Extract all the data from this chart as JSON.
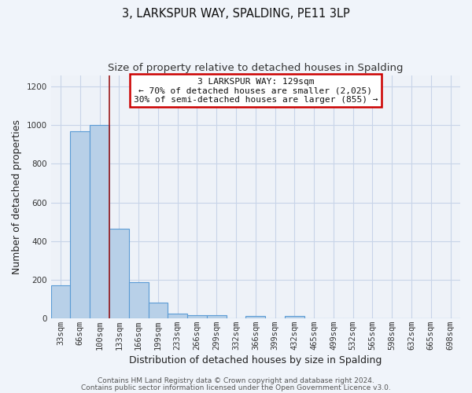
{
  "title": "3, LARKSPUR WAY, SPALDING, PE11 3LP",
  "subtitle": "Size of property relative to detached houses in Spalding",
  "xlabel": "Distribution of detached houses by size in Spalding",
  "ylabel": "Number of detached properties",
  "bar_labels": [
    "33sqm",
    "66sqm",
    "100sqm",
    "133sqm",
    "166sqm",
    "199sqm",
    "233sqm",
    "266sqm",
    "299sqm",
    "332sqm",
    "366sqm",
    "399sqm",
    "432sqm",
    "465sqm",
    "499sqm",
    "532sqm",
    "565sqm",
    "598sqm",
    "632sqm",
    "665sqm",
    "698sqm"
  ],
  "bar_values": [
    170,
    970,
    1000,
    465,
    185,
    80,
    25,
    15,
    15,
    0,
    10,
    0,
    10,
    0,
    0,
    0,
    0,
    0,
    0,
    0,
    0
  ],
  "bar_color": "#b8d0e8",
  "bar_edge_color": "#5b9bd5",
  "vline_color": "#9b1b1b",
  "vline_x": 2.5,
  "ylim": [
    0,
    1260
  ],
  "annotation_title": "3 LARKSPUR WAY: 129sqm",
  "annotation_line1": "← 70% of detached houses are smaller (2,025)",
  "annotation_line2": "30% of semi-detached houses are larger (855) →",
  "annotation_box_facecolor": "#ffffff",
  "annotation_box_edgecolor": "#cc0000",
  "bg_color": "#f0f4fa",
  "plot_bg_color": "#eef2f8",
  "grid_color": "#c8d4e8",
  "title_fontsize": 10.5,
  "subtitle_fontsize": 9.5,
  "axis_label_fontsize": 9,
  "tick_fontsize": 7.5,
  "annotation_fontsize": 8,
  "footer_fontsize": 6.5,
  "footer_line1": "Contains HM Land Registry data © Crown copyright and database right 2024.",
  "footer_line2": "Contains public sector information licensed under the Open Government Licence v3.0."
}
